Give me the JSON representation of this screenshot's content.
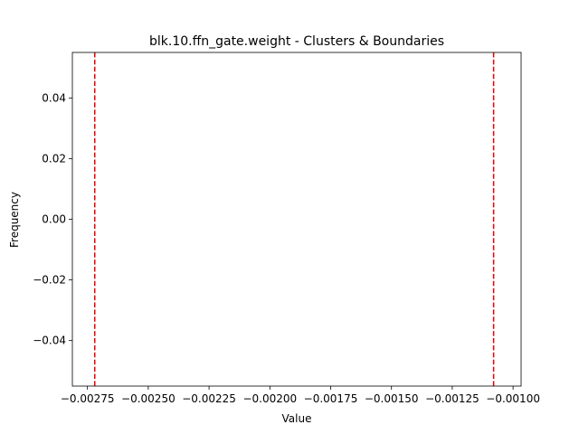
{
  "chart_data": {
    "type": "histogram",
    "title": "blk.10.ffn_gate.weight - Clusters & Boundaries",
    "xlabel": "Value",
    "ylabel": "Frequency",
    "xlim": [
      -0.002812,
      -0.000967
    ],
    "ylim": [
      -0.055,
      0.055
    ],
    "x_ticks": [
      {
        "value": -0.00275,
        "label": "−0.00275"
      },
      {
        "value": -0.0025,
        "label": "−0.00250"
      },
      {
        "value": -0.00225,
        "label": "−0.00225"
      },
      {
        "value": -0.002,
        "label": "−0.00200"
      },
      {
        "value": -0.00175,
        "label": "−0.00175"
      },
      {
        "value": -0.0015,
        "label": "−0.00150"
      },
      {
        "value": -0.00125,
        "label": "−0.00125"
      },
      {
        "value": -0.001,
        "label": "−0.00100"
      }
    ],
    "y_ticks": [
      {
        "value": 0.04,
        "label": "0.04"
      },
      {
        "value": 0.02,
        "label": "0.02"
      },
      {
        "value": 0.0,
        "label": "0.00"
      },
      {
        "value": -0.02,
        "label": "−0.02"
      },
      {
        "value": -0.04,
        "label": "−0.04"
      }
    ],
    "boundaries": [
      {
        "value": -0.00272,
        "color": "#e60000",
        "style": "dashed"
      },
      {
        "value": -0.00108,
        "color": "#e60000",
        "style": "dashed"
      }
    ],
    "bars": [],
    "grid": false
  }
}
